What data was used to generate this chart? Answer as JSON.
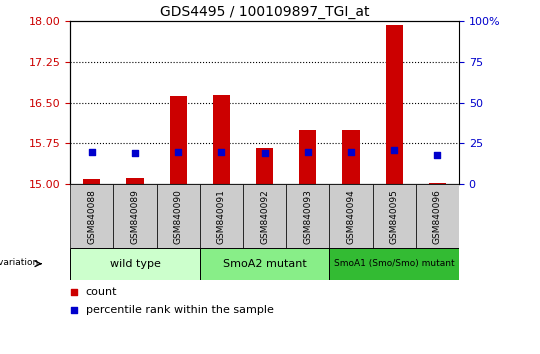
{
  "title": "GDS4495 / 100109897_TGI_at",
  "samples": [
    "GSM840088",
    "GSM840089",
    "GSM840090",
    "GSM840091",
    "GSM840092",
    "GSM840093",
    "GSM840094",
    "GSM840095",
    "GSM840096"
  ],
  "count_values": [
    15.1,
    15.12,
    16.62,
    16.65,
    15.67,
    16.0,
    16.0,
    17.93,
    15.02
  ],
  "percentile_values": [
    20,
    19,
    20,
    20,
    19,
    20,
    20,
    21,
    18
  ],
  "y_min": 15,
  "y_max": 18,
  "y_ticks": [
    15,
    15.75,
    16.5,
    17.25,
    18
  ],
  "right_y_ticks": [
    0,
    25,
    50,
    75,
    100
  ],
  "groups": [
    {
      "label": "wild type",
      "start": 0,
      "end": 3,
      "color": "#ccffcc"
    },
    {
      "label": "SmoA2 mutant",
      "start": 3,
      "end": 6,
      "color": "#88ee88"
    },
    {
      "label": "SmoA1 (Smo/Smo) mutant",
      "start": 6,
      "end": 9,
      "color": "#33bb33"
    }
  ],
  "bar_color": "#cc0000",
  "dot_color": "#0000cc",
  "bar_bottom": 15,
  "legend_label_count": "count",
  "legend_label_percentile": "percentile rank within the sample",
  "left_label_color": "#cc0000",
  "right_label_color": "#0000cc",
  "background_color": "#ffffff",
  "plot_bg_color": "#ffffff",
  "xtick_bg_color": "#cccccc",
  "bar_width": 0.4
}
